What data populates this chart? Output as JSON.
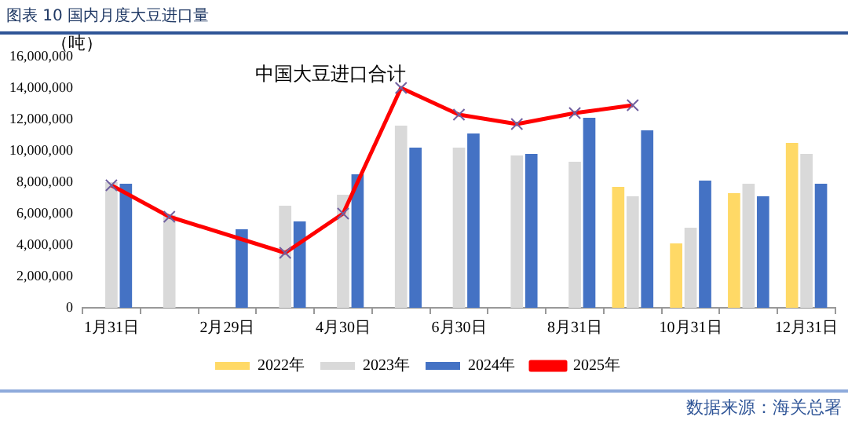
{
  "chart_data": {
    "type": "bar",
    "title": "图表 10 国内月度大豆进口量",
    "ylabel": "（吨）",
    "annotations": [
      "中国大豆进口合计",
      "数据来源：海关总署"
    ],
    "categories": [
      "1月31日",
      null,
      "2月29日",
      null,
      "4月30日",
      null,
      "6月30日",
      null,
      "8月31日",
      null,
      "10月31日",
      null,
      "12月31日"
    ],
    "series": [
      {
        "name": "2022年",
        "color": "#ffd966",
        "values": [
          null,
          null,
          null,
          null,
          null,
          null,
          null,
          null,
          null,
          7700000,
          4100000,
          7300000,
          10500000
        ]
      },
      {
        "name": "2023年",
        "color": "#d9d9d9",
        "values": [
          8000000,
          5900000,
          null,
          6500000,
          7200000,
          11600000,
          10200000,
          9700000,
          9300000,
          7100000,
          5100000,
          7900000,
          9800000
        ]
      },
      {
        "name": "2024年",
        "color": "#4472c4",
        "values": [
          7900000,
          null,
          5000000,
          5500000,
          8500000,
          10200000,
          11100000,
          9800000,
          12100000,
          11300000,
          8100000,
          7100000,
          7900000
        ]
      },
      {
        "name": "2025年",
        "type": "line",
        "color": "#ff0000",
        "values": [
          7800000,
          5800000,
          null,
          3500000,
          6000000,
          14000000,
          12300000,
          11700000,
          12400000,
          12900000,
          null,
          null,
          null
        ]
      }
    ],
    "ylim": [
      0,
      16000000
    ],
    "yticks": [
      0,
      {
        "value": 2000000,
        "label": "2,000,000"
      },
      {
        "value": 4000000,
        "label": "4,000,000"
      },
      {
        "value": 6000000,
        "label": "6,000,000"
      },
      {
        "value": 8000000,
        "label": "8,000,000"
      },
      {
        "value": 10000000,
        "label": "10,000,000"
      },
      {
        "value": 12000000,
        "label": "12,000,000"
      },
      {
        "value": 14000000,
        "label": "14,000,000"
      },
      {
        "value": 16000000,
        "label": "16,000,000"
      }
    ],
    "grid": false,
    "legend": "bottom",
    "marker": "cross",
    "line_style": "solid"
  }
}
